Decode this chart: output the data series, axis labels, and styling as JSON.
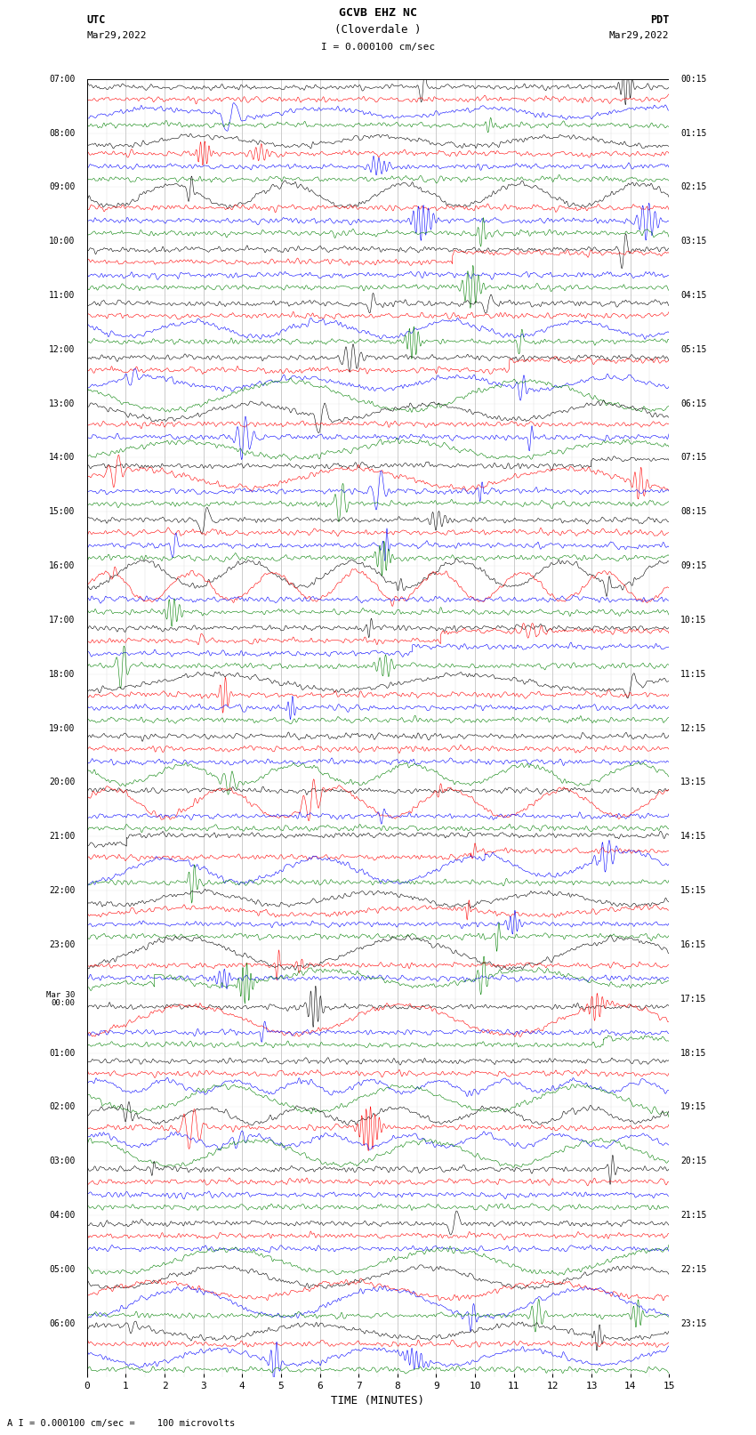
{
  "title_line1": "GCVB EHZ NC",
  "title_line2": "(Cloverdale )",
  "scale_text": "I = 0.000100 cm/sec",
  "left_label": "UTC",
  "left_date": "Mar29,2022",
  "right_label": "PDT",
  "right_date": "Mar29,2022",
  "xlabel": "TIME (MINUTES)",
  "footer": "A I = 0.000100 cm/sec =    100 microvolts",
  "utc_times": [
    "07:00",
    "08:00",
    "09:00",
    "10:00",
    "11:00",
    "12:00",
    "13:00",
    "14:00",
    "15:00",
    "16:00",
    "17:00",
    "18:00",
    "19:00",
    "20:00",
    "21:00",
    "22:00",
    "23:00",
    "Mar 30\n00:00",
    "01:00",
    "02:00",
    "03:00",
    "04:00",
    "05:00",
    "06:00"
  ],
  "pdt_times": [
    "00:15",
    "01:15",
    "02:15",
    "03:15",
    "04:15",
    "05:15",
    "06:15",
    "07:15",
    "08:15",
    "09:15",
    "10:15",
    "11:15",
    "12:15",
    "13:15",
    "14:15",
    "15:15",
    "16:15",
    "17:15",
    "18:15",
    "19:15",
    "20:15",
    "21:15",
    "22:15",
    "23:15"
  ],
  "num_hours": 24,
  "x_min": 0,
  "x_max": 15,
  "x_ticks": [
    0,
    1,
    2,
    3,
    4,
    5,
    6,
    7,
    8,
    9,
    10,
    11,
    12,
    13,
    14,
    15
  ],
  "colors": [
    "black",
    "red",
    "blue",
    "green"
  ],
  "bg_color": "white",
  "grid_color": "#888888",
  "seed": 12345
}
